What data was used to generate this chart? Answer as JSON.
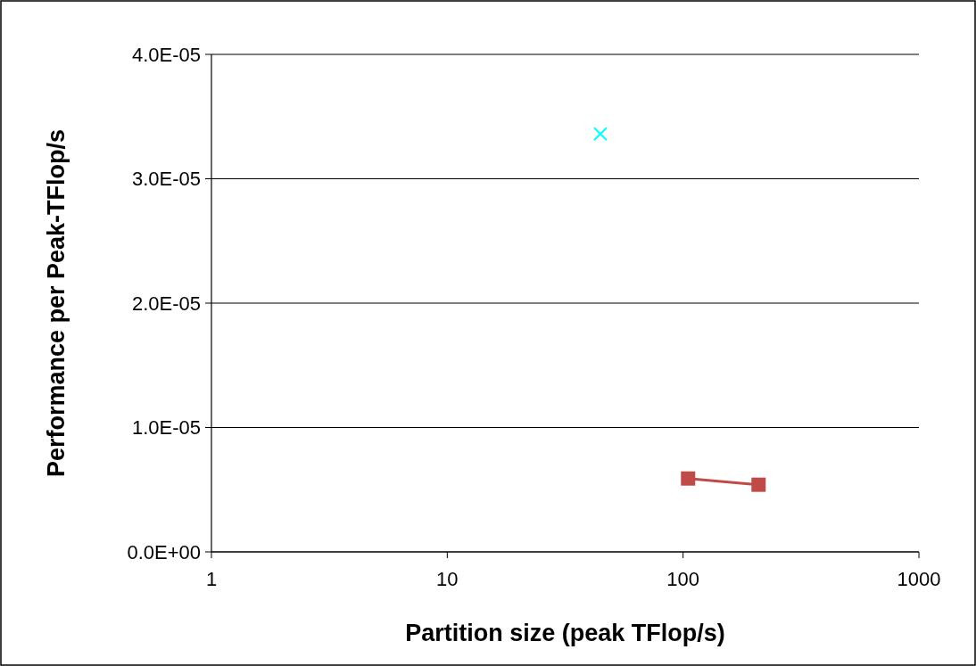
{
  "chart_data": {
    "type": "line",
    "xlabel": "Partition size (peak TFlop/s)",
    "ylabel": "Performance per Peak-TFlop/s",
    "log": "x",
    "xlim": [
      1,
      1000
    ],
    "xticks": [
      1,
      10,
      100,
      1000
    ],
    "ylim": [
      0,
      4e-05
    ],
    "yticks": [
      {
        "value": 0,
        "label": "0.0E+00"
      },
      {
        "value": 1e-05,
        "label": "1.0E-05"
      },
      {
        "value": 2e-05,
        "label": "2.0E-05"
      },
      {
        "value": 3e-05,
        "label": "3.0E-05"
      },
      {
        "value": 4e-05,
        "label": "4.0E-05"
      }
    ],
    "grid": "y",
    "series": [
      {
        "color": "#00ffff",
        "marker": "cross",
        "x": [
          44.6
        ],
        "values": [
          3.36e-05
        ]
      },
      {
        "color": "#be4b48",
        "marker": "square",
        "x": [
          105,
          209
        ],
        "values": [
          5.9e-06,
          5.4e-06
        ]
      }
    ]
  }
}
